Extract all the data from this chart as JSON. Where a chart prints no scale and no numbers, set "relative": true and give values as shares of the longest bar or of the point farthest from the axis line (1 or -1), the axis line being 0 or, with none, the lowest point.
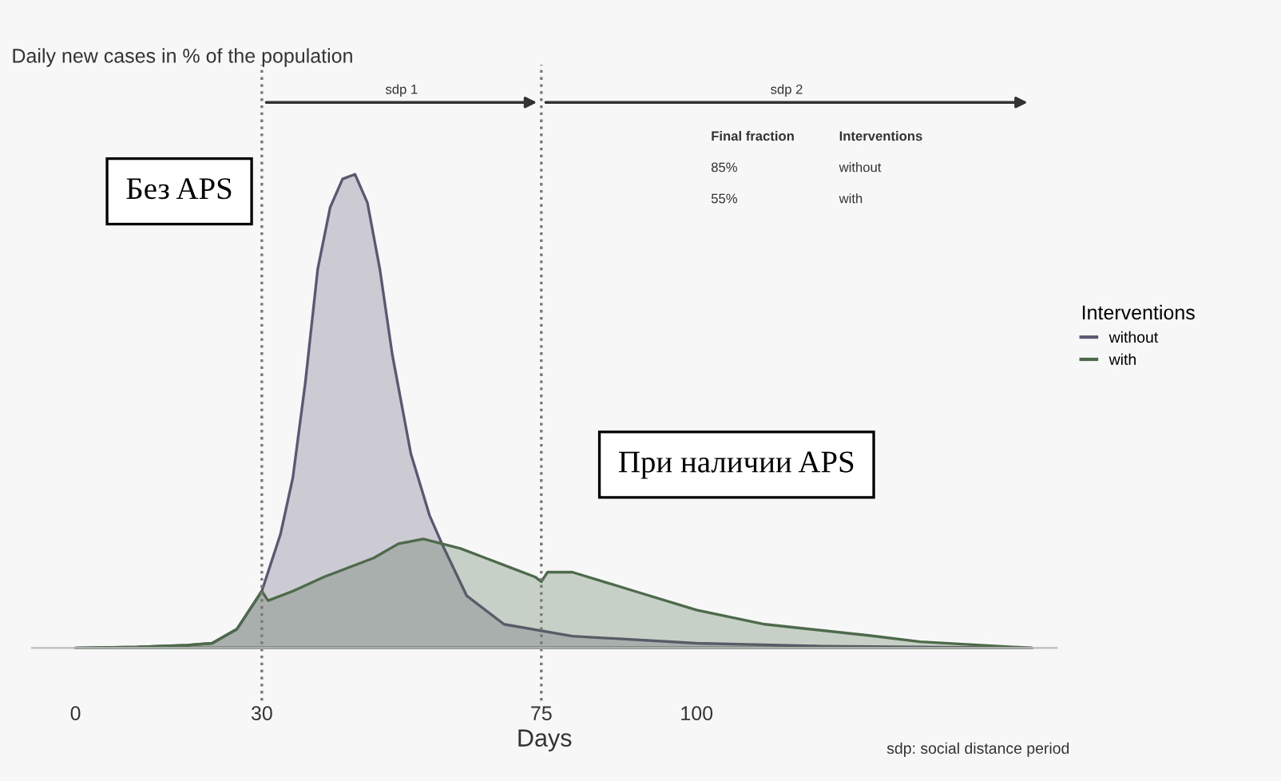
{
  "chart_data": {
    "type": "area",
    "title": "Daily new cases in % of the population",
    "xlabel": "Days",
    "legend_title": "Interventions",
    "relative": true,
    "xlim": [
      -7,
      158
    ],
    "xticks": [
      0,
      30,
      75,
      100
    ],
    "grid": false,
    "legend": "right",
    "series": [
      {
        "name": "without",
        "color": "#5e5672",
        "x": [
          0,
          10,
          18,
          22,
          26,
          30,
          33,
          35,
          37,
          39,
          41,
          43,
          45,
          47,
          49,
          51,
          54,
          57,
          59,
          63,
          69,
          80,
          100,
          120,
          154
        ],
        "values": [
          0,
          0.002,
          0.006,
          0.01,
          0.04,
          0.12,
          0.24,
          0.36,
          0.56,
          0.8,
          0.93,
          0.99,
          1.0,
          0.94,
          0.8,
          0.62,
          0.41,
          0.28,
          0.22,
          0.11,
          0.05,
          0.025,
          0.01,
          0.004,
          0
        ]
      },
      {
        "name": "with",
        "color": "#4d6a4b",
        "x": [
          0,
          10,
          18,
          22,
          26,
          30,
          31,
          35,
          40,
          48,
          52,
          56,
          62,
          66,
          70,
          74,
          75,
          76,
          80,
          85,
          90,
          100,
          111,
          128,
          136,
          154
        ],
        "values": [
          0,
          0.002,
          0.006,
          0.01,
          0.04,
          0.12,
          0.1,
          0.12,
          0.15,
          0.19,
          0.22,
          0.23,
          0.21,
          0.19,
          0.17,
          0.15,
          0.14,
          0.16,
          0.16,
          0.14,
          0.12,
          0.08,
          0.05,
          0.026,
          0.013,
          0
        ]
      }
    ],
    "ref_lines": [
      {
        "axis": "x",
        "value": 30,
        "line_style": "dotted",
        "color": "#777777"
      },
      {
        "axis": "x",
        "value": 75,
        "line_style": "dotted",
        "color": "#777777"
      }
    ],
    "annotations": [
      "Final fraction",
      "Interventions",
      "85%",
      "without",
      "55%",
      "with",
      "Без APS",
      "При наличии APS",
      "sdp: social distance period",
      "sdp 1",
      "sdp 2"
    ]
  }
}
